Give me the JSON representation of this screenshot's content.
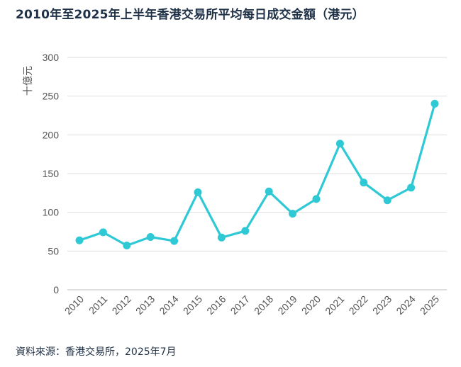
{
  "chart_data": {
    "type": "line",
    "title": "2010年至2025年上半年香港交易所平均每日成交金額（港元）",
    "ylabel": "十億元",
    "xlabel": "",
    "source": "資料來源：香港交易所，2025年7月",
    "x": [
      "2010",
      "2011",
      "2012",
      "2013",
      "2014",
      "2015",
      "2016",
      "2017",
      "2018",
      "2019",
      "2020",
      "2021",
      "2022",
      "2023",
      "2024",
      "2025"
    ],
    "series": [
      {
        "values": [
          63.8,
          74.2,
          57.2,
          68.1,
          63.0,
          125.9,
          67.4,
          76.0,
          126.9,
          98.2,
          117.2,
          188.6,
          138.4,
          115.5,
          131.8,
          240.2
        ]
      }
    ],
    "ylim": [
      0,
      300
    ],
    "yticks": [
      0,
      50,
      100,
      150,
      200,
      250,
      300
    ],
    "grid": "horizontal",
    "color": "#2fc9d5"
  }
}
